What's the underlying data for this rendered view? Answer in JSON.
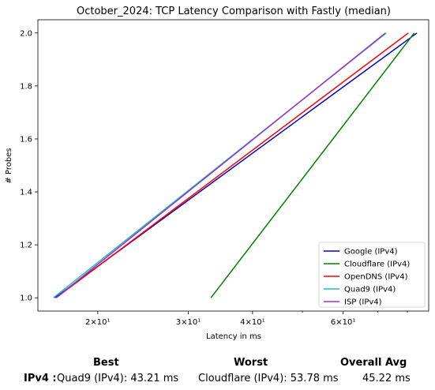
{
  "chart_data": {
    "type": "line",
    "title": "October_2024: TCP Latency Comparison with Fastly (median)",
    "xlabel": "Latency in ms",
    "ylabel": "# Probes",
    "xscale": "log",
    "xlim": [
      15.3,
      88
    ],
    "ylim": [
      0.95,
      2.05
    ],
    "xticks": [
      {
        "value": 20,
        "label": "2×10¹"
      },
      {
        "value": 30,
        "label": "3×10¹"
      },
      {
        "value": 40,
        "label": "4×10¹"
      },
      {
        "value": 60,
        "label": "6×10¹"
      }
    ],
    "yticks": [
      1.0,
      1.2,
      1.4,
      1.6,
      1.8,
      2.0
    ],
    "legend_position": "lower-right",
    "grid": false,
    "series": [
      {
        "name": "Google (IPv4)",
        "color": "#0000cc",
        "x": [
          16.5,
          83.5
        ],
        "y": [
          1,
          2
        ]
      },
      {
        "name": "Cloudflare (IPv4)",
        "color": "#008000",
        "x": [
          33.2,
          82.5
        ],
        "y": [
          1,
          2
        ]
      },
      {
        "name": "OpenDNS (IPv4)",
        "color": "#ff0000",
        "x": [
          16.6,
          80.3
        ],
        "y": [
          1,
          2
        ]
      },
      {
        "name": "Quad9 (IPv4)",
        "color": "#20c0c0",
        "x": [
          16.4,
          72.8
        ],
        "y": [
          1,
          2
        ]
      },
      {
        "name": "ISP (IPv4)",
        "color": "#9b30d0",
        "x": [
          16.6,
          72.5
        ],
        "y": [
          1,
          2
        ]
      }
    ]
  },
  "summary": {
    "row_label": "IPv4 :",
    "best_header": "Best",
    "worst_header": "Worst",
    "avg_header": "Overall Avg",
    "best_value": "Quad9 (IPv4): 43.21 ms",
    "worst_value": "Cloudflare (IPv4): 53.78 ms",
    "avg_value": "45.22 ms"
  }
}
